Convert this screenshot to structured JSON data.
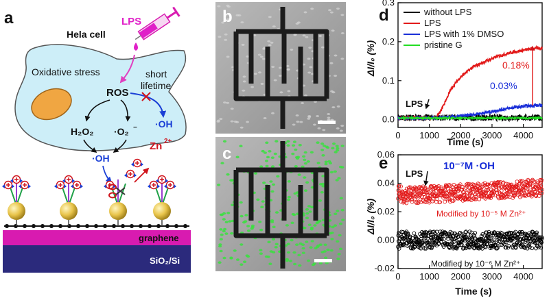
{
  "panel_a": {
    "label": "a",
    "lps": "LPS",
    "hela_cell": "Hela cell",
    "oxidative_stress": "Oxidative stress",
    "ros": "ROS",
    "short": "short",
    "lifetime": "lifetime",
    "oh_right": "·OH",
    "h2o2": "H₂O₂",
    "o2": "·O₂",
    "o2_sup": "−",
    "oh_center": "·OH",
    "zn": "Zn",
    "zn_sup": "2+",
    "graphene": "graphene",
    "substrate": "SiO₂/Si",
    "colors": {
      "cell": "#cdeef8",
      "nucleus": "#f0a642",
      "graphene_band": "#d81bb0",
      "substrate": "#2b2a7c",
      "lps": "#e020c8",
      "ros_arrow": "#e040c0",
      "oh": "#1a3fd6",
      "zn": "#d0141c"
    }
  },
  "panel_b": {
    "label": "b"
  },
  "panel_c": {
    "label": "c"
  },
  "chart_data": [
    {
      "id": "d",
      "type": "line",
      "label": "d",
      "xlabel": "Time (s)",
      "ylabel": "ΔI/I₀ (%)",
      "xlim": [
        0,
        4600
      ],
      "ylim": [
        -0.02,
        0.3
      ],
      "xticks": [
        0,
        1000,
        2000,
        3000,
        4000
      ],
      "yticks": [
        0.0,
        0.1,
        0.2,
        0.3
      ],
      "ytick_labels": [
        "0.0",
        "0.1",
        "0.2",
        "0.3"
      ],
      "legend_position": "top-left",
      "series": [
        {
          "name": "without LPS",
          "color": "#000000",
          "x": [
            0,
            4600
          ],
          "y": [
            0.005,
            0.005
          ]
        },
        {
          "name": "LPS",
          "color": "#e21a1a",
          "x": [
            0,
            1200,
            1350,
            1500,
            1700,
            2000,
            2400,
            2800,
            3200,
            3600,
            4000,
            4300,
            4600
          ],
          "y": [
            0.004,
            0.004,
            0.02,
            0.045,
            0.08,
            0.11,
            0.135,
            0.15,
            0.163,
            0.172,
            0.178,
            0.182,
            0.184
          ]
        },
        {
          "name": "LPS with 1% DMSO",
          "color": "#1a2fd8",
          "x": [
            0,
            1300,
            1800,
            2300,
            2800,
            3200,
            3600,
            4000,
            4300,
            4600
          ],
          "y": [
            0.004,
            0.004,
            0.007,
            0.012,
            0.018,
            0.024,
            0.03,
            0.034,
            0.036,
            0.037
          ]
        },
        {
          "name": "pristine G",
          "color": "#22dd22",
          "x": [
            0,
            4600
          ],
          "y": [
            0.004,
            0.004
          ]
        }
      ],
      "annotations": {
        "lps": "LPS",
        "red_pct": "0.18%",
        "blue_pct": "0.03%"
      }
    },
    {
      "id": "e",
      "type": "scatter",
      "label": "e",
      "xlabel": "Time (s)",
      "ylabel": "ΔI/I₀ (%)",
      "xlim": [
        0,
        4600
      ],
      "ylim": [
        -0.02,
        0.06
      ],
      "xticks": [
        0,
        1000,
        2000,
        3000,
        4000
      ],
      "yticks": [
        -0.02,
        0.0,
        0.02,
        0.04,
        0.06
      ],
      "ytick_labels": [
        "-0.02",
        "0.00",
        "0.02",
        "0.04",
        "0.06"
      ],
      "series": [
        {
          "name": "Modified by 10⁻⁵ M Zn²⁺",
          "color": "#e21a1a",
          "x": [
            0,
            1000,
            4600
          ],
          "y": [
            0.032,
            0.032,
            0.037
          ]
        },
        {
          "name": "Modified by 10⁻⁶ M Zn²⁺",
          "color": "#000000",
          "x": [
            0,
            4600
          ],
          "y": [
            0.0,
            0.0
          ]
        }
      ],
      "annotations": {
        "lps": "LPS",
        "title": "10⁻⁷M ·OH"
      }
    }
  ]
}
